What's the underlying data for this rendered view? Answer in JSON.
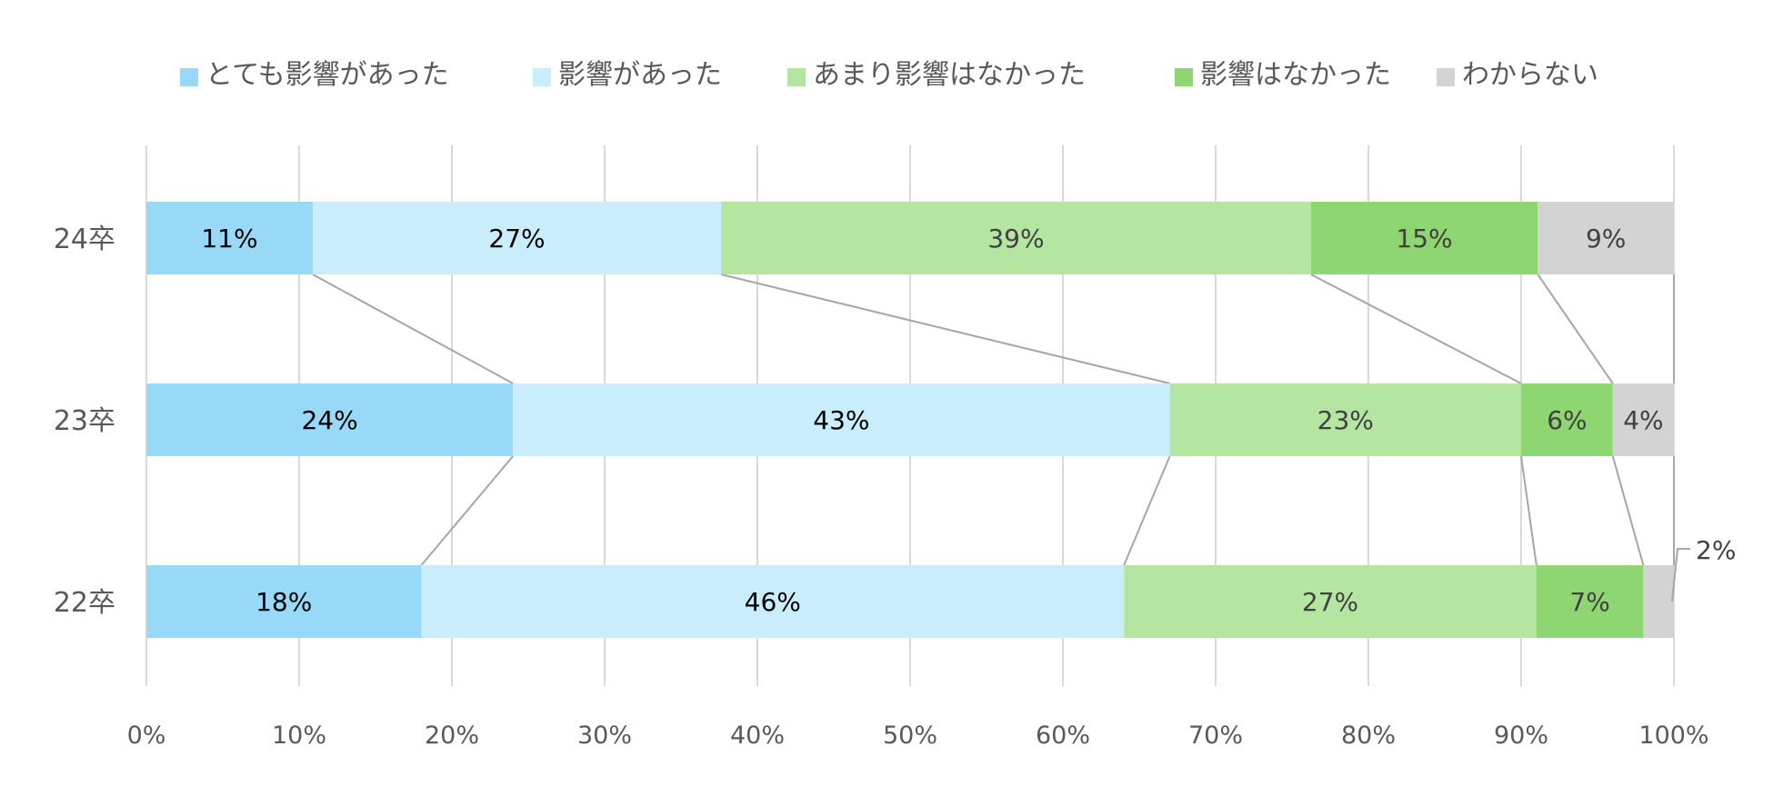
{
  "chart_data": {
    "type": "bar",
    "orientation": "horizontal",
    "stacked": "percent",
    "categories": [
      "24卒",
      "23卒",
      "22卒"
    ],
    "series": [
      {
        "name": "とても影響があった",
        "color": "#97d9f6",
        "values": [
          11,
          24,
          18
        ],
        "labels": [
          "11%",
          "24%",
          "18%"
        ]
      },
      {
        "name": "影響があった",
        "color": "#c9edfb",
        "values": [
          27,
          43,
          46
        ],
        "labels": [
          "27%",
          "43%",
          "46%"
        ]
      },
      {
        "name": "あまり影響はなかった",
        "color": "#b4e6a2",
        "values": [
          39,
          23,
          27
        ],
        "labels": [
          "39%",
          "23%",
          "27%"
        ]
      },
      {
        "name": "影響はなかった",
        "color": "#8dd672",
        "values": [
          15,
          6,
          7
        ],
        "labels": [
          "15%",
          "6%",
          "7%"
        ]
      },
      {
        "name": "わからない",
        "color": "#d3d3d3",
        "values": [
          9,
          4,
          2
        ],
        "labels": [
          "9%",
          "4%",
          "2%"
        ]
      }
    ],
    "xticks": [
      "0%",
      "10%",
      "20%",
      "30%",
      "40%",
      "50%",
      "60%",
      "70%",
      "80%",
      "90%",
      "100%"
    ],
    "xlim": [
      0,
      100
    ],
    "grid": true,
    "legend": "top",
    "series_lines": true,
    "title": "",
    "xlabel": "",
    "ylabel": ""
  }
}
